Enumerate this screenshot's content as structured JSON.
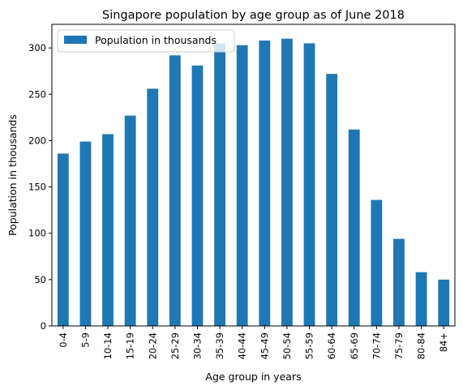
{
  "chart_data": {
    "type": "bar",
    "title": "Singapore population by age group as of June 2018",
    "xlabel": "Age group in years",
    "ylabel": "Population in thousands",
    "categories": [
      "0-4",
      "5-9",
      "10-14",
      "15-19",
      "20-24",
      "25-29",
      "30-34",
      "35-39",
      "40-44",
      "45-49",
      "50-54",
      "55-59",
      "60-64",
      "65-69",
      "70-74",
      "75-79",
      "80-84",
      "84+"
    ],
    "series": [
      {
        "name": "Population in thousands",
        "values": [
          186,
          199,
          207,
          227,
          256,
          292,
          281,
          305,
          303,
          308,
          310,
          305,
          272,
          212,
          136,
          94,
          58,
          50
        ],
        "color": "#1f77b4"
      }
    ],
    "ylim": [
      0,
      325.5
    ],
    "yticks": [
      0,
      50,
      100,
      150,
      200,
      250,
      300
    ],
    "legend": "top-left",
    "grid": false
  }
}
